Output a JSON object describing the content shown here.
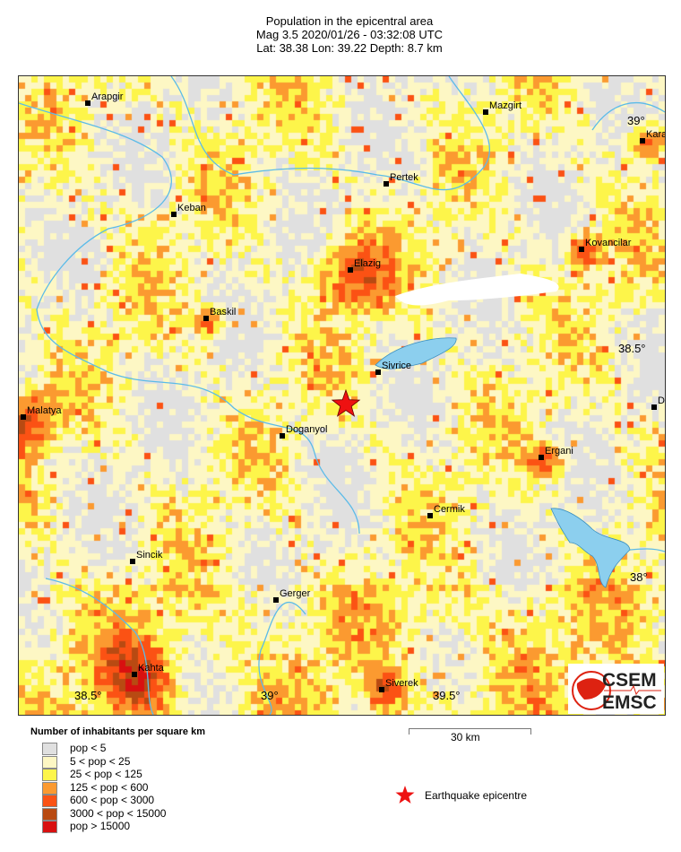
{
  "title": {
    "line1": "Population in the epicentral area",
    "line2": "Mag 3.5  2020/01/26 - 03:32:08 UTC",
    "line3": "Lat: 38.38    Lon:  39.22     Depth:  8.7 km"
  },
  "cities": [
    "Arapgir",
    "Mazgirt",
    "Kara",
    "Pertek",
    "Keban",
    "Kovancilar",
    "Elazig",
    "Baskil",
    "Sivrice",
    "Malatya",
    "Doganyol",
    "D",
    "Ergani",
    "Cermik",
    "Sincik",
    "Gerger",
    "Kahta",
    "Siverek"
  ],
  "lat_ticks": [
    "39°",
    "38.5°",
    "38°"
  ],
  "lon_ticks": [
    "38.5°",
    "39°",
    "39.5°"
  ],
  "logo": {
    "top": "CSEM",
    "bottom": "EMSC"
  },
  "legend": {
    "title": "Number of inhabitants per square km",
    "items": [
      {
        "label": "pop < 5",
        "color": "#e0e0e0"
      },
      {
        "label": "5 < pop < 25",
        "color": "#fdf7c4"
      },
      {
        "label": "25 < pop < 125",
        "color": "#fdf54a"
      },
      {
        "label": "125 < pop < 600",
        "color": "#fb9a30"
      },
      {
        "label": "600 < pop < 3000",
        "color": "#fb5214"
      },
      {
        "label": "3000 < pop < 15000",
        "color": "#b84a12"
      },
      {
        "label": "pop > 15000",
        "color": "#d81010"
      }
    ]
  },
  "scale_bar": "30 km",
  "epicentre_label": "Earthquake epicentre",
  "colors": {
    "water": "#8ccfee",
    "river": "#5bbbe8",
    "epicentre": "#ee1111"
  }
}
